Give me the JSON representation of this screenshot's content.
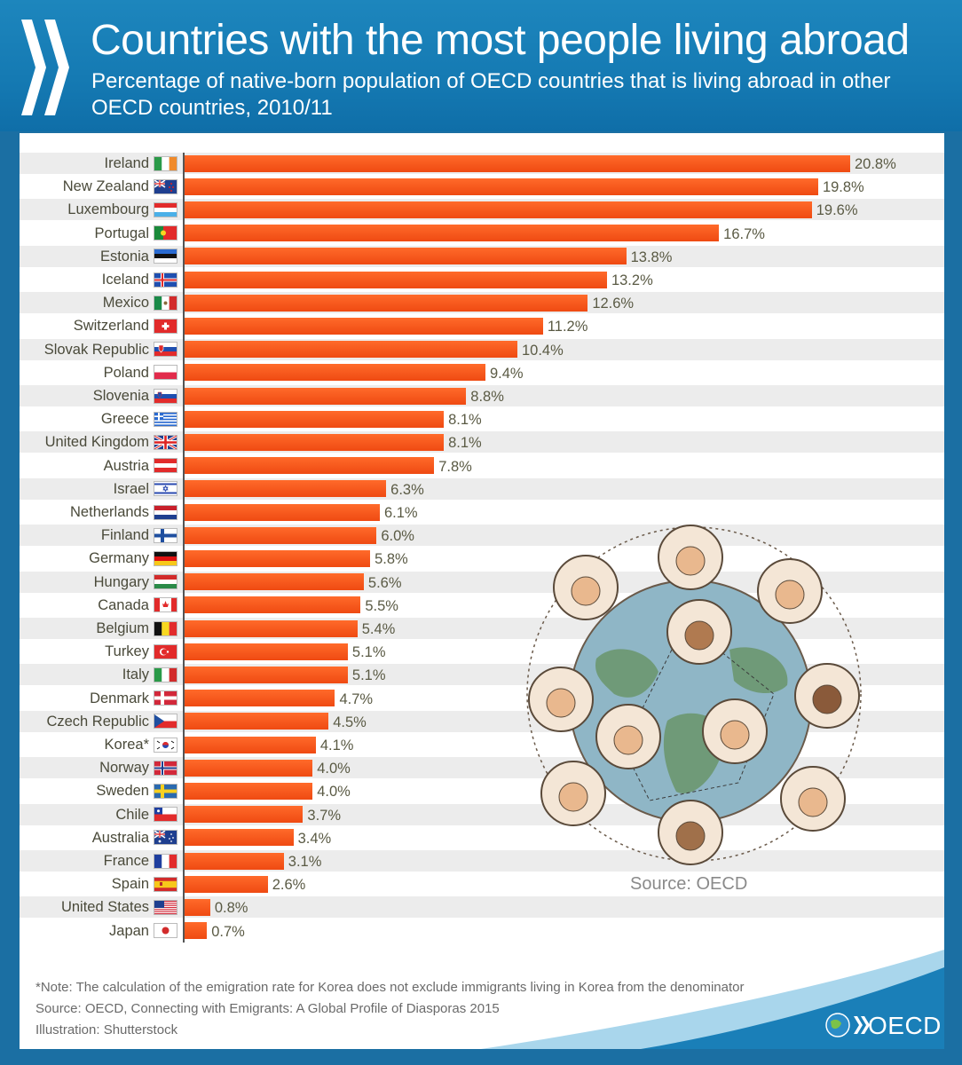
{
  "header": {
    "title": "Countries with the most people living abroad",
    "subtitle": "Percentage of native-born population of OECD countries that is living abroad in other OECD countries, 2010/11"
  },
  "chart_data": {
    "type": "bar",
    "orientation": "horizontal",
    "categories": [
      "Ireland",
      "New Zealand",
      "Luxembourg",
      "Portugal",
      "Estonia",
      "Iceland",
      "Mexico",
      "Switzerland",
      "Slovak Republic",
      "Poland",
      "Slovenia",
      "Greece",
      "United Kingdom",
      "Austria",
      "Israel",
      "Netherlands",
      "Finland",
      "Germany",
      "Hungary",
      "Canada",
      "Belgium",
      "Turkey",
      "Italy",
      "Denmark",
      "Czech Republic",
      "Korea*",
      "Norway",
      "Sweden",
      "Chile",
      "Australia",
      "France",
      "Spain",
      "United States",
      "Japan"
    ],
    "values": [
      20.8,
      19.8,
      19.6,
      16.7,
      13.8,
      13.2,
      12.6,
      11.2,
      10.4,
      9.4,
      8.8,
      8.1,
      8.1,
      7.8,
      6.3,
      6.1,
      6.0,
      5.8,
      5.6,
      5.5,
      5.4,
      5.1,
      5.1,
      4.7,
      4.5,
      4.1,
      4.0,
      4.0,
      3.7,
      3.4,
      3.1,
      2.6,
      0.8,
      0.7
    ],
    "value_labels": [
      "20.8%",
      "19.8%",
      "19.6%",
      "16.7%",
      "13.8%",
      "13.2%",
      "12.6%",
      "11.2%",
      "10.4%",
      "9.4%",
      "8.8%",
      "8.1%",
      "8.1%",
      "7.8%",
      "6.3%",
      "6.1%",
      "6.0%",
      "5.8%",
      "5.6%",
      "5.5%",
      "5.4%",
      "5.1%",
      "5.1%",
      "4.7%",
      "4.5%",
      "4.1%",
      "4.0%",
      "4.0%",
      "3.7%",
      "3.4%",
      "3.1%",
      "2.6%",
      "0.8%",
      "0.7%"
    ],
    "flags": [
      "ireland-flag",
      "new-zealand-flag",
      "luxembourg-flag",
      "portugal-flag",
      "estonia-flag",
      "iceland-flag",
      "mexico-flag",
      "switzerland-flag",
      "slovakia-flag",
      "poland-flag",
      "slovenia-flag",
      "greece-flag",
      "united-kingdom-flag",
      "austria-flag",
      "israel-flag",
      "netherlands-flag",
      "finland-flag",
      "germany-flag",
      "hungary-flag",
      "canada-flag",
      "belgium-flag",
      "turkey-flag",
      "italy-flag",
      "denmark-flag",
      "czech-republic-flag",
      "korea-flag",
      "norway-flag",
      "sweden-flag",
      "chile-flag",
      "australia-flag",
      "france-flag",
      "spain-flag",
      "united-states-flag",
      "japan-flag"
    ],
    "xlim": [
      0,
      20.8
    ],
    "bar_color": "#f0561a",
    "stripe_color": "#ececec"
  },
  "illustration": {
    "source_label": "Source: OECD"
  },
  "footer": {
    "note": "*Note: The calculation of the emigration rate for Korea does not exclude immigrants living in Korea from the denominator",
    "source": "Source: OECD, Connecting with Emigrants: A Global Profile of Diasporas 2015",
    "illustration_credit": "Illustration: Shutterstock",
    "logo_text": "OECD"
  },
  "colors": {
    "header_blue": "#1a7fb8",
    "bar_orange": "#f0561a",
    "text_olive": "#4a4a3a"
  }
}
